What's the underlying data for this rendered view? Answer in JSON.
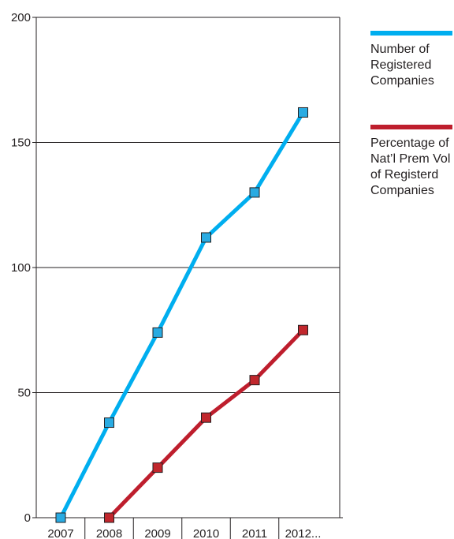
{
  "chart_data": {
    "type": "line",
    "title": "",
    "xlabel": "",
    "ylabel": "",
    "categories": [
      "2007",
      "2008",
      "2009",
      "2010",
      "2011",
      "2012..."
    ],
    "ylim": [
      0,
      200
    ],
    "yticks": [
      0,
      50,
      100,
      150,
      200
    ],
    "grid": "horizontal",
    "legend_position": "right",
    "series": [
      {
        "name": "Number of Registered Companies",
        "color": "#00aeef",
        "marker_color": "#29abe2",
        "values": [
          0,
          38,
          74,
          112,
          130,
          162
        ]
      },
      {
        "name": "Percentage of Nat’l Prem Vol of Registerd Companies",
        "color": "#be1e2d",
        "marker_color": "#c1272d",
        "values": [
          null,
          0,
          20,
          40,
          55,
          75
        ]
      }
    ]
  }
}
